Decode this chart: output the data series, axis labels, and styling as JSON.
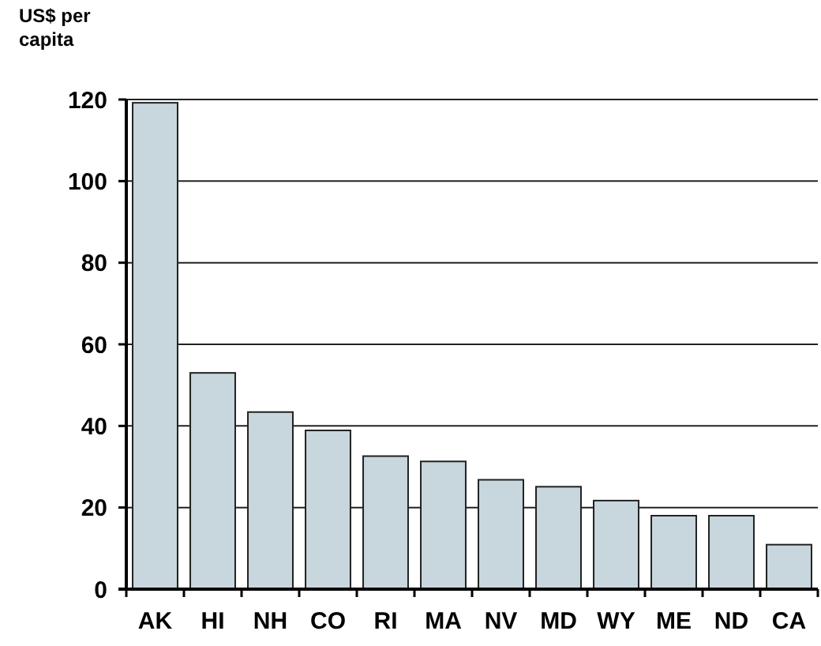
{
  "chart_data": {
    "type": "bar",
    "ylabel": "US$ per capita",
    "categories": [
      "AK",
      "HI",
      "NH",
      "CO",
      "RI",
      "MA",
      "NV",
      "MD",
      "WY",
      "ME",
      "ND",
      "CA"
    ],
    "values": [
      119.2,
      53,
      43.4,
      38.9,
      32.6,
      31.3,
      26.8,
      25.1,
      21.7,
      18,
      18,
      10.9
    ],
    "color": "#c8d7dd",
    "ylim": [
      0,
      120
    ],
    "yticks": [
      0,
      20,
      40,
      60,
      80,
      100,
      120
    ],
    "grid": "y"
  }
}
